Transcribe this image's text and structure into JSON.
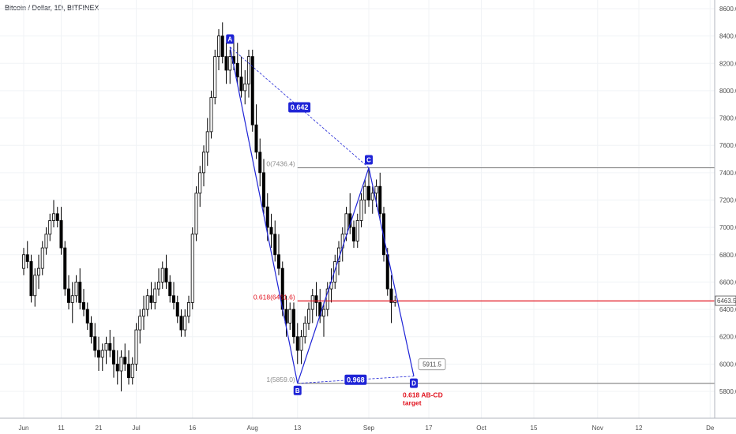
{
  "chart_data": {
    "type": "candlestick",
    "title": "Bitcoin / Dollar, 1D, BITFINEX",
    "y_ticks": [
      "8600.0",
      "8400.0",
      "8200.0",
      "8000.0",
      "7800.0",
      "7600.0",
      "7400.0",
      "7200.0",
      "7000.0",
      "6800.0",
      "6600.0",
      "6400.0",
      "6200.0",
      "6000.0",
      "5800.0"
    ],
    "ylim": [
      5630,
      8650
    ],
    "x_ticks": [
      {
        "label": "Jun",
        "day": 0
      },
      {
        "label": "11",
        "day": 10
      },
      {
        "label": "21",
        "day": 20
      },
      {
        "label": "Jul",
        "day": 30
      },
      {
        "label": "16",
        "day": 45
      },
      {
        "label": "Aug",
        "day": 61
      },
      {
        "label": "13",
        "day": 73
      },
      {
        "label": "Sep",
        "day": 92
      },
      {
        "label": "17",
        "day": 108
      },
      {
        "label": "Oct",
        "day": 122
      },
      {
        "label": "15",
        "day": 136
      },
      {
        "label": "Nov",
        "day": 153
      },
      {
        "label": "12",
        "day": 164
      },
      {
        "label": "De",
        "day": 183
      }
    ],
    "candles": [
      [
        6700,
        6850,
        6650,
        6800
      ],
      [
        6800,
        6900,
        6700,
        6750
      ],
      [
        6750,
        6800,
        6450,
        6500
      ],
      [
        6500,
        6700,
        6420,
        6650
      ],
      [
        6650,
        6800,
        6550,
        6700
      ],
      [
        6700,
        6900,
        6650,
        6850
      ],
      [
        6850,
        7000,
        6800,
        6950
      ],
      [
        6950,
        7100,
        6900,
        7050
      ],
      [
        7050,
        7200,
        7000,
        7100
      ],
      [
        7100,
        7150,
        7000,
        7050
      ],
      [
        7050,
        7150,
        6800,
        6850
      ],
      [
        6850,
        6900,
        6500,
        6550
      ],
      [
        6550,
        6650,
        6400,
        6450
      ],
      [
        6450,
        6600,
        6300,
        6500
      ],
      [
        6500,
        6650,
        6450,
        6600
      ],
      [
        6600,
        6700,
        6400,
        6450
      ],
      [
        6450,
        6550,
        6350,
        6400
      ],
      [
        6400,
        6450,
        6250,
        6300
      ],
      [
        6300,
        6350,
        6150,
        6200
      ],
      [
        6200,
        6300,
        6050,
        6100
      ],
      [
        6100,
        6200,
        5950,
        6050
      ],
      [
        6050,
        6150,
        5950,
        6100
      ],
      [
        6100,
        6200,
        6000,
        6150
      ],
      [
        6150,
        6250,
        6050,
        6100
      ],
      [
        6100,
        6200,
        5900,
        6000
      ],
      [
        6000,
        6100,
        5850,
        5950
      ],
      [
        5950,
        6100,
        5800,
        6050
      ],
      [
        6050,
        6150,
        5950,
        6000
      ],
      [
        6000,
        6100,
        5850,
        5900
      ],
      [
        5900,
        6050,
        5850,
        6000
      ],
      [
        6000,
        6300,
        5950,
        6250
      ],
      [
        6250,
        6400,
        6150,
        6350
      ],
      [
        6350,
        6500,
        6250,
        6400
      ],
      [
        6400,
        6550,
        6350,
        6500
      ],
      [
        6500,
        6600,
        6400,
        6450
      ],
      [
        6450,
        6600,
        6400,
        6550
      ],
      [
        6550,
        6700,
        6500,
        6600
      ],
      [
        6600,
        6750,
        6550,
        6700
      ],
      [
        6700,
        6800,
        6550,
        6600
      ],
      [
        6600,
        6650,
        6450,
        6500
      ],
      [
        6500,
        6600,
        6400,
        6450
      ],
      [
        6450,
        6500,
        6300,
        6350
      ],
      [
        6350,
        6400,
        6200,
        6250
      ],
      [
        6250,
        6400,
        6200,
        6350
      ],
      [
        6350,
        6500,
        6300,
        6450
      ],
      [
        6450,
        7000,
        6400,
        6950
      ],
      [
        6950,
        7300,
        6900,
        7250
      ],
      [
        7250,
        7450,
        7150,
        7400
      ],
      [
        7400,
        7600,
        7300,
        7550
      ],
      [
        7550,
        7800,
        7450,
        7700
      ],
      [
        7700,
        8000,
        7650,
        7950
      ],
      [
        7950,
        8300,
        7900,
        8250
      ],
      [
        8250,
        8450,
        8150,
        8400
      ],
      [
        8400,
        8500,
        8200,
        8250
      ],
      [
        8250,
        8350,
        8050,
        8150
      ],
      [
        8150,
        8300,
        8050,
        8250
      ],
      [
        8250,
        8400,
        8150,
        8200
      ],
      [
        8200,
        8350,
        8050,
        8100
      ],
      [
        8100,
        8250,
        7950,
        8000
      ],
      [
        8000,
        8150,
        7900,
        8050
      ],
      [
        8050,
        8300,
        7950,
        8250
      ],
      [
        8250,
        8300,
        7700,
        7750
      ],
      [
        7750,
        7900,
        7500,
        7550
      ],
      [
        7550,
        7650,
        7300,
        7400
      ],
      [
        7400,
        7500,
        7100,
        7150
      ],
      [
        7150,
        7250,
        6900,
        7000
      ],
      [
        7000,
        7100,
        6850,
        6950
      ],
      [
        6950,
        7050,
        6750,
        6800
      ],
      [
        6800,
        6950,
        6650,
        6700
      ],
      [
        6700,
        6750,
        6350,
        6400
      ],
      [
        6400,
        6500,
        6200,
        6300
      ],
      [
        6300,
        6450,
        6250,
        6400
      ],
      [
        6400,
        6450,
        6150,
        6200
      ],
      [
        6200,
        6300,
        6000,
        6100
      ],
      [
        6100,
        6250,
        6000,
        6200
      ],
      [
        6200,
        6350,
        6150,
        6300
      ],
      [
        6300,
        6450,
        6250,
        6400
      ],
      [
        6400,
        6550,
        6300,
        6500
      ],
      [
        6500,
        6600,
        6350,
        6450
      ],
      [
        6450,
        6550,
        6300,
        6350
      ],
      [
        6350,
        6450,
        6200,
        6400
      ],
      [
        6400,
        6600,
        6350,
        6550
      ],
      [
        6550,
        6700,
        6450,
        6600
      ],
      [
        6600,
        6800,
        6550,
        6750
      ],
      [
        6750,
        6900,
        6650,
        6850
      ],
      [
        6850,
        7000,
        6750,
        6950
      ],
      [
        6950,
        7150,
        6900,
        7100
      ],
      [
        7100,
        7250,
        6950,
        7000
      ],
      [
        7000,
        7050,
        6850,
        6900
      ],
      [
        6900,
        7100,
        6850,
        7050
      ],
      [
        7050,
        7250,
        7000,
        7200
      ],
      [
        7200,
        7350,
        7100,
        7300
      ],
      [
        7300,
        7420,
        7150,
        7200
      ],
      [
        7200,
        7300,
        7100,
        7250
      ],
      [
        7250,
        7350,
        7150,
        7300
      ],
      [
        7300,
        7400,
        7050,
        7100
      ],
      [
        7100,
        7150,
        6750,
        6800
      ],
      [
        6800,
        6850,
        6500,
        6550
      ],
      [
        6550,
        6650,
        6300,
        6450
      ],
      [
        6450,
        6500,
        6420,
        6463.5
      ]
    ],
    "last_price": "6463.5",
    "harmonic_points": [
      {
        "label": "A",
        "day": 55,
        "value": 8320
      },
      {
        "label": "B",
        "day": 73,
        "value": 5859
      },
      {
        "label": "C",
        "day": 92,
        "value": 7436.4
      },
      {
        "label": "D",
        "day": 104,
        "value": 5911.5
      }
    ],
    "ratios": [
      {
        "text": "0.642",
        "between": "A-C"
      },
      {
        "text": "0.968",
        "between": "B-D"
      }
    ],
    "fib_levels": [
      {
        "text": "0(7436.4)",
        "value": 7436.4,
        "color": "#8c8c8c"
      },
      {
        "text": "0.618(6461.6)",
        "value": 6461.6,
        "color": "#e1131f"
      },
      {
        "text": "1(5859.0)",
        "value": 5859,
        "color": "#8c8c8c"
      }
    ],
    "d_price_box": "5911.5",
    "target_line1": "0.618 AB-CD",
    "target_line2": "target",
    "colors": {
      "candle": "#000000",
      "pattern": "#1f24d6",
      "fib_red": "#e1131f",
      "fib_gray": "#8c8c8c",
      "grid": "#f0f3f6"
    }
  }
}
